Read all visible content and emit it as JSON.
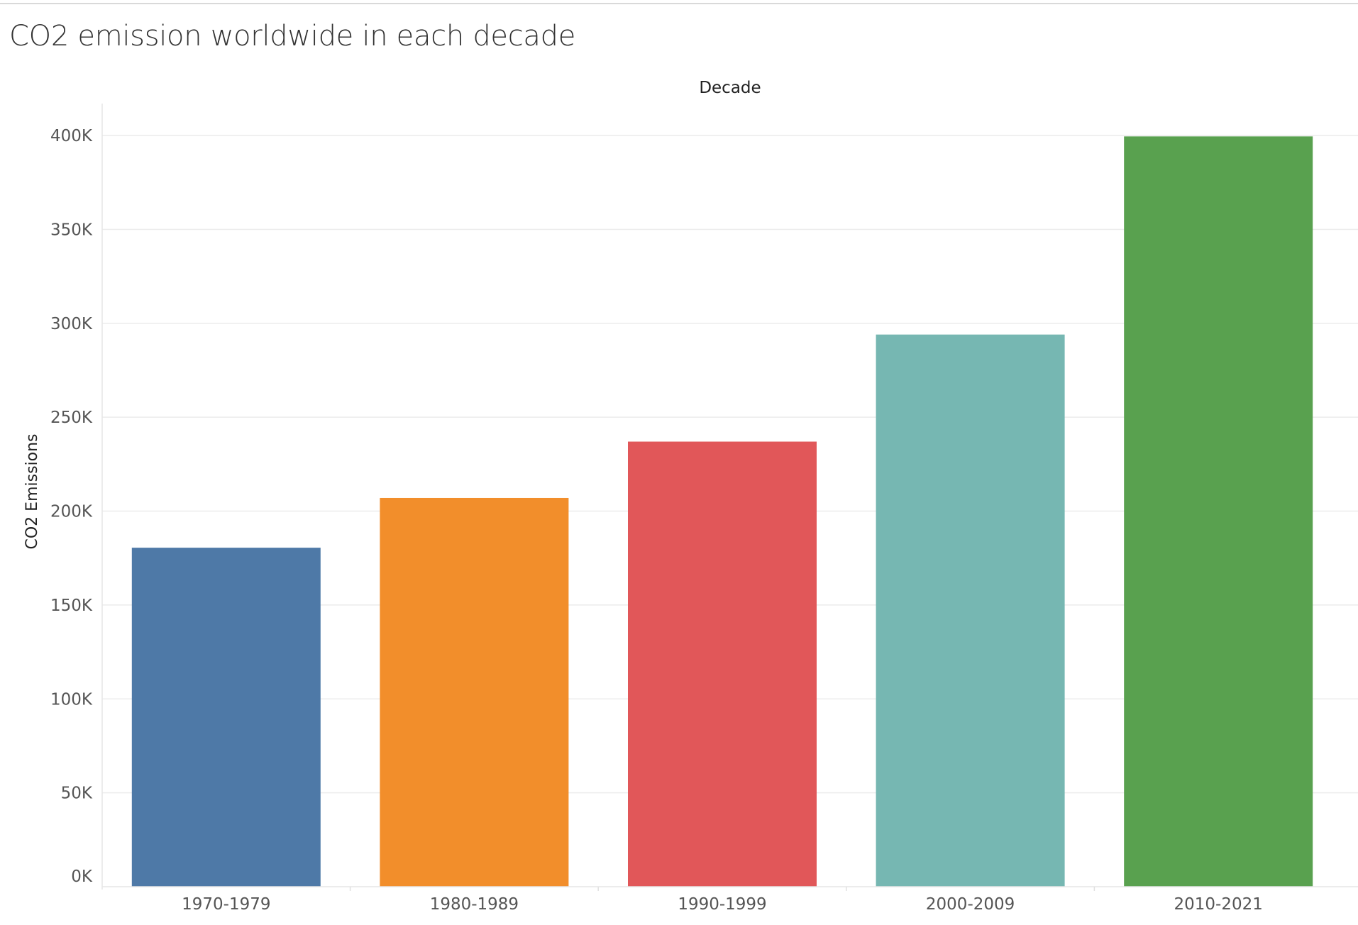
{
  "chart_data": {
    "type": "bar",
    "title": "CO2 emission worldwide in each decade",
    "column_header": "Decade",
    "ylabel": "CO2 Emissions",
    "xlabel": "",
    "categories": [
      "1970-1979",
      "1980-1989",
      "1990-1999",
      "2000-2009",
      "2010-2021"
    ],
    "values": [
      180500,
      207000,
      237000,
      294000,
      399500
    ],
    "colors": [
      "#4e79a7",
      "#f28e2b",
      "#e15759",
      "#76b7b2",
      "#59a14f"
    ],
    "ylim": [
      0,
      400000
    ],
    "yticks": [
      {
        "value": 0,
        "label": "0K"
      },
      {
        "value": 50000,
        "label": "50K"
      },
      {
        "value": 100000,
        "label": "100K"
      },
      {
        "value": 150000,
        "label": "150K"
      },
      {
        "value": 200000,
        "label": "200K"
      },
      {
        "value": 250000,
        "label": "250K"
      },
      {
        "value": 300000,
        "label": "300K"
      },
      {
        "value": 350000,
        "label": "350K"
      },
      {
        "value": 400000,
        "label": "400K"
      }
    ],
    "grid": true,
    "legend": "none"
  }
}
